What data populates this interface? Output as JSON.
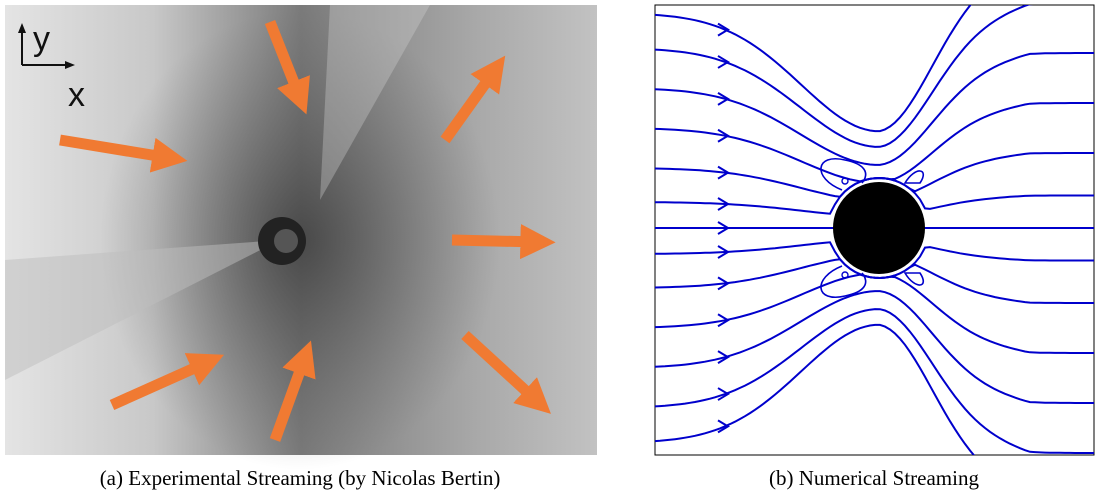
{
  "figure": {
    "axes_label_y": "y",
    "axes_label_x": "x",
    "caption_a": "(a) Experimental Streaming (by Nicolas Bertin)",
    "caption_b": "(b) Numerical Streaming"
  }
}
